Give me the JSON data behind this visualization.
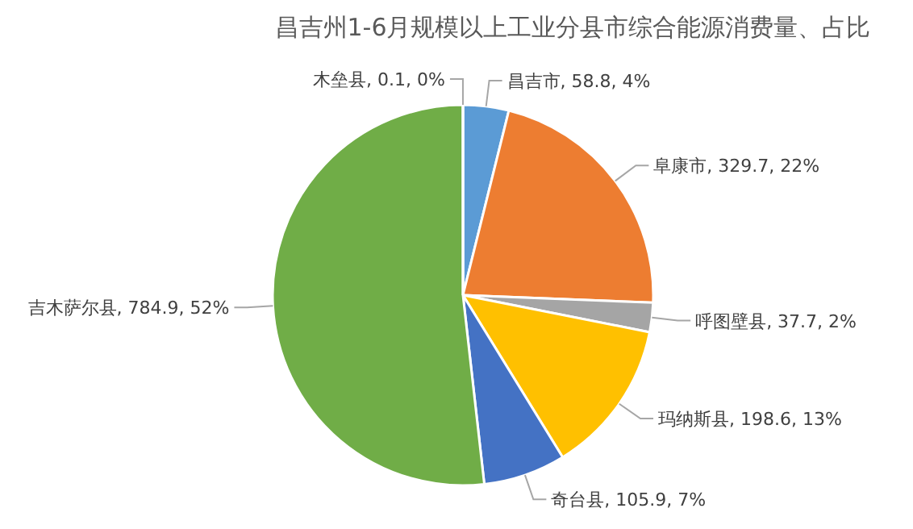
{
  "chart_data": {
    "type": "pie",
    "title": "昌吉州1-6月规模以上工业分县市综合能源消费量、占比",
    "categories": [
      "昌吉市",
      "阜康市",
      "呼图壁县",
      "玛纳斯县",
      "奇台县",
      "吉木萨尔县",
      "木垒县"
    ],
    "values": [
      58.8,
      329.7,
      37.7,
      198.6,
      105.9,
      784.9,
      0.1
    ],
    "value_labels": [
      "58.8, 4%",
      "329.7, 22%",
      "37.7, 2%",
      "198.6, 13%",
      "105.9, 7%",
      "784.9, 52%",
      "0.1, 0%"
    ],
    "colors": [
      "#5b9bd5",
      "#ed7d31",
      "#a5a5a5",
      "#ffc000",
      "#4472c4",
      "#70ad47",
      "#255e91"
    ]
  }
}
